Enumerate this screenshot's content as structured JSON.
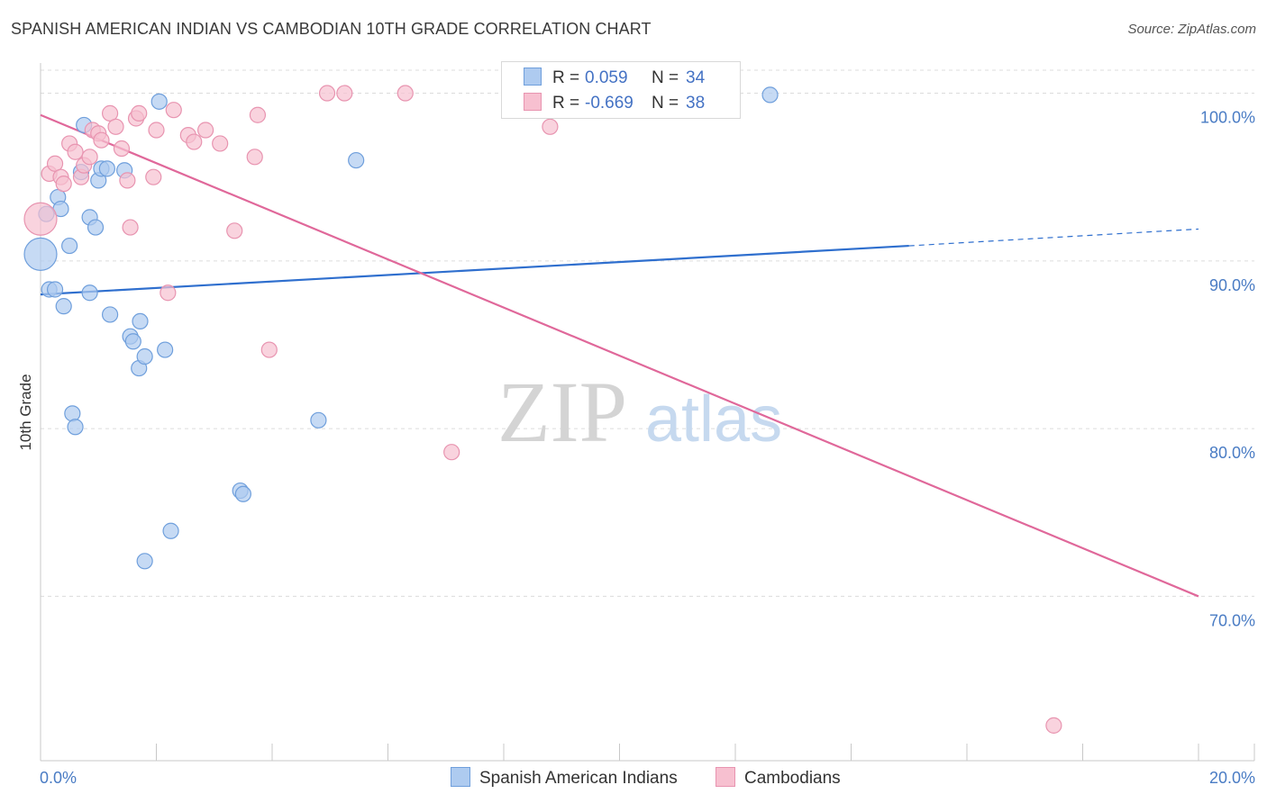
{
  "title": "SPANISH AMERICAN INDIAN VS CAMBODIAN 10TH GRADE CORRELATION CHART",
  "source": "Source: ZipAtlas.com",
  "watermark": {
    "zip": "ZIP",
    "atlas": "atlas"
  },
  "colors": {
    "blue_fill": "#aecbf0",
    "blue_stroke": "#6f9fdc",
    "blue_line": "#2f6fce",
    "pink_fill": "#f7c0d0",
    "pink_stroke": "#e894b0",
    "pink_line": "#e0689a",
    "tick_text": "#4a7cc4",
    "grid": "#dcdcdc"
  },
  "legend": {
    "rows": [
      {
        "r_label": "R =",
        "r_value": "0.059",
        "n_label": "N =",
        "n_value": "34"
      },
      {
        "r_label": "R =",
        "r_value": "-0.669",
        "n_label": "N =",
        "n_value": "38"
      }
    ]
  },
  "bottom_legend": [
    "Spanish American Indians",
    "Cambodians"
  ],
  "chart_data": {
    "type": "scatter",
    "title": "SPANISH AMERICAN INDIAN VS CAMBODIAN 10TH GRADE CORRELATION CHART",
    "xlabel": "",
    "ylabel": "10th Grade",
    "xlim": [
      0,
      20
    ],
    "ylim": [
      60.2,
      101.8
    ],
    "x_tick_labels": [
      "0.0%",
      "20.0%"
    ],
    "y_ticks": [
      70,
      80,
      90,
      100
    ],
    "y_tick_labels": [
      "70.0%",
      "80.0%",
      "90.0%",
      "100.0%"
    ],
    "series": [
      {
        "name": "Spanish American Indians",
        "R": 0.059,
        "N": 34,
        "trend": {
          "x0": 0,
          "y0": 88.0,
          "x1": 15.0,
          "y1": 90.9,
          "dash_to_x": 20,
          "dash_to_y": 91.9
        },
        "points": [
          {
            "x": 0.0,
            "y": 90.4,
            "big": true
          },
          {
            "x": 0.1,
            "y": 92.8
          },
          {
            "x": 0.15,
            "y": 88.3
          },
          {
            "x": 0.25,
            "y": 88.3
          },
          {
            "x": 0.3,
            "y": 93.8
          },
          {
            "x": 0.35,
            "y": 93.1
          },
          {
            "x": 0.4,
            "y": 87.3
          },
          {
            "x": 0.5,
            "y": 90.9
          },
          {
            "x": 0.55,
            "y": 80.9
          },
          {
            "x": 0.6,
            "y": 80.1
          },
          {
            "x": 0.7,
            "y": 95.3
          },
          {
            "x": 0.75,
            "y": 98.1
          },
          {
            "x": 0.85,
            "y": 92.6
          },
          {
            "x": 0.85,
            "y": 88.1
          },
          {
            "x": 0.95,
            "y": 92.0
          },
          {
            "x": 1.0,
            "y": 94.8
          },
          {
            "x": 1.05,
            "y": 95.5
          },
          {
            "x": 1.15,
            "y": 95.5
          },
          {
            "x": 1.2,
            "y": 86.8
          },
          {
            "x": 1.45,
            "y": 95.4
          },
          {
            "x": 1.55,
            "y": 85.5
          },
          {
            "x": 1.6,
            "y": 85.2
          },
          {
            "x": 1.7,
            "y": 83.6
          },
          {
            "x": 1.72,
            "y": 86.4
          },
          {
            "x": 1.8,
            "y": 84.3
          },
          {
            "x": 2.05,
            "y": 99.5
          },
          {
            "x": 2.15,
            "y": 84.7
          },
          {
            "x": 2.25,
            "y": 73.9
          },
          {
            "x": 1.8,
            "y": 72.1
          },
          {
            "x": 3.45,
            "y": 76.3
          },
          {
            "x": 3.5,
            "y": 76.1
          },
          {
            "x": 4.8,
            "y": 80.5
          },
          {
            "x": 5.45,
            "y": 96.0
          },
          {
            "x": 12.6,
            "y": 99.9
          }
        ]
      },
      {
        "name": "Cambodians",
        "R": -0.669,
        "N": 38,
        "trend": {
          "x0": 0,
          "y0": 98.7,
          "x1": 20,
          "y1": 70.0
        },
        "points": [
          {
            "x": 0.0,
            "y": 92.5,
            "big": true
          },
          {
            "x": 0.15,
            "y": 95.2
          },
          {
            "x": 0.25,
            "y": 95.8
          },
          {
            "x": 0.35,
            "y": 95.0
          },
          {
            "x": 0.4,
            "y": 94.6
          },
          {
            "x": 0.5,
            "y": 97.0
          },
          {
            "x": 0.6,
            "y": 96.5
          },
          {
            "x": 0.7,
            "y": 95.0
          },
          {
            "x": 0.75,
            "y": 95.7
          },
          {
            "x": 0.85,
            "y": 96.2
          },
          {
            "x": 0.9,
            "y": 97.8
          },
          {
            "x": 1.0,
            "y": 97.6
          },
          {
            "x": 1.05,
            "y": 97.2
          },
          {
            "x": 1.2,
            "y": 98.8
          },
          {
            "x": 1.3,
            "y": 98.0
          },
          {
            "x": 1.4,
            "y": 96.7
          },
          {
            "x": 1.5,
            "y": 94.8
          },
          {
            "x": 1.55,
            "y": 92.0
          },
          {
            "x": 1.65,
            "y": 98.5
          },
          {
            "x": 1.7,
            "y": 98.8
          },
          {
            "x": 1.95,
            "y": 95.0
          },
          {
            "x": 2.0,
            "y": 97.8
          },
          {
            "x": 2.2,
            "y": 88.1
          },
          {
            "x": 2.3,
            "y": 99.0
          },
          {
            "x": 2.55,
            "y": 97.5
          },
          {
            "x": 2.65,
            "y": 97.1
          },
          {
            "x": 2.85,
            "y": 97.8
          },
          {
            "x": 3.1,
            "y": 97.0
          },
          {
            "x": 3.35,
            "y": 91.8
          },
          {
            "x": 3.7,
            "y": 96.2
          },
          {
            "x": 3.75,
            "y": 98.7
          },
          {
            "x": 3.95,
            "y": 84.7
          },
          {
            "x": 4.95,
            "y": 100.0
          },
          {
            "x": 5.25,
            "y": 100.0
          },
          {
            "x": 6.3,
            "y": 100.0
          },
          {
            "x": 7.1,
            "y": 78.6
          },
          {
            "x": 8.8,
            "y": 98.0
          },
          {
            "x": 17.5,
            "y": 62.3
          }
        ]
      }
    ]
  }
}
